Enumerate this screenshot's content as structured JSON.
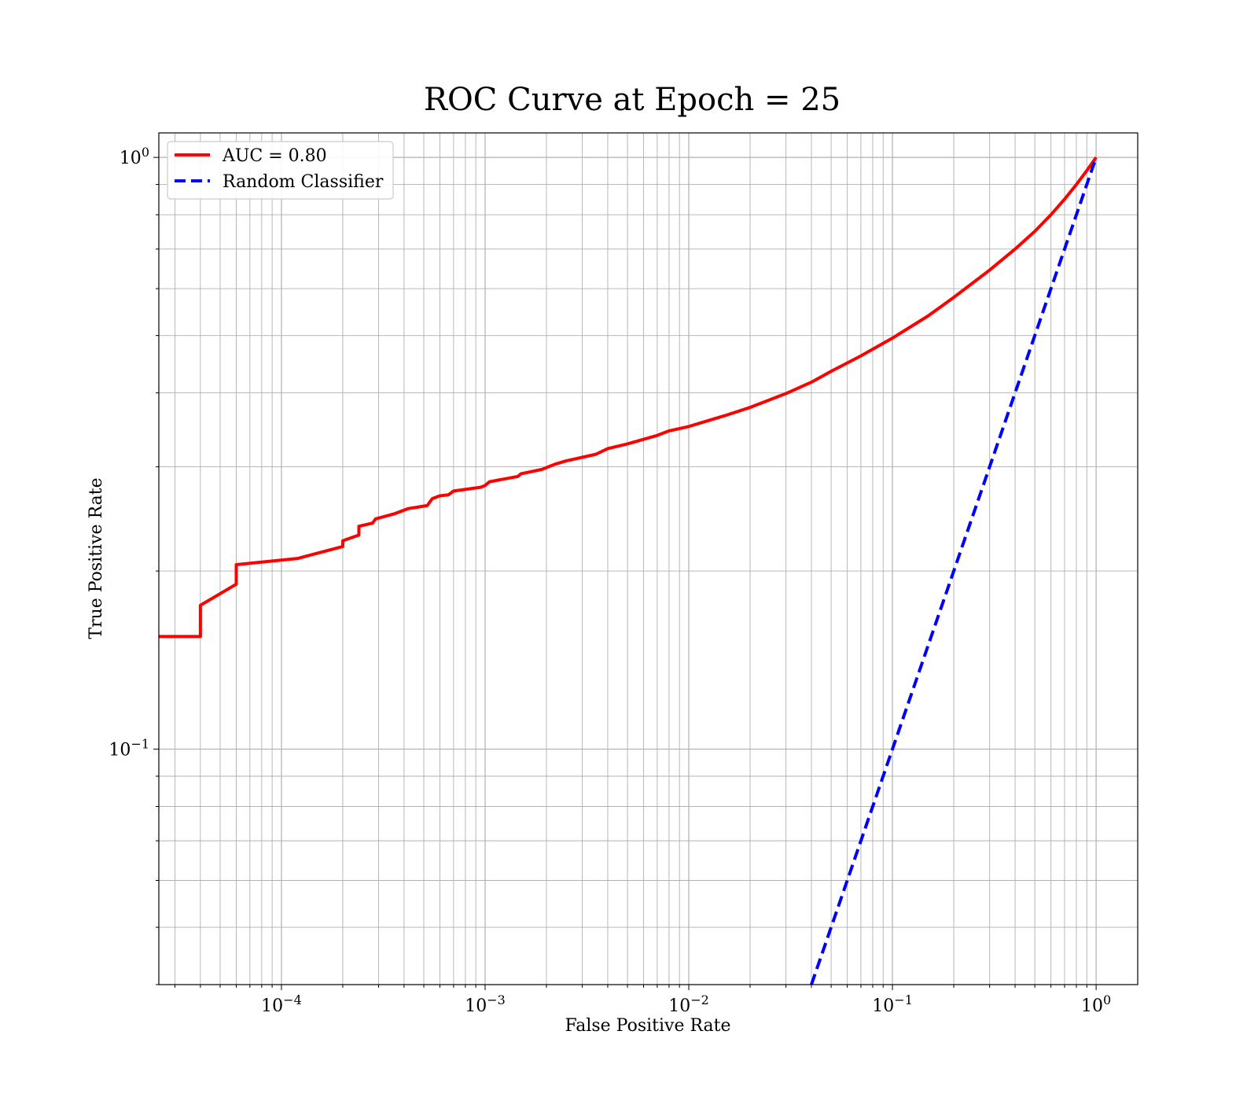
{
  "chart_data": {
    "type": "line",
    "title": "ROC Curve at Epoch = 25",
    "xlabel": "False Positive Rate",
    "ylabel": "True Positive Rate",
    "xscale": "log",
    "yscale": "log",
    "xlim": [
      2.5e-05,
      1.6
    ],
    "ylim": [
      0.04,
      1.1
    ],
    "grid": "on (major and minor)",
    "legend_position": "top-left",
    "x_ticks": [
      {
        "value": 0.0001,
        "base": "10",
        "exp": "−4"
      },
      {
        "value": 0.001,
        "base": "10",
        "exp": "−3"
      },
      {
        "value": 0.01,
        "base": "10",
        "exp": "−2"
      },
      {
        "value": 0.1,
        "base": "10",
        "exp": "−1"
      },
      {
        "value": 1,
        "base": "10",
        "exp": "0"
      }
    ],
    "y_ticks": [
      {
        "value": 0.1,
        "base": "10",
        "exp": "−1"
      },
      {
        "value": 1,
        "base": "10",
        "exp": "0"
      }
    ],
    "series": [
      {
        "name": "AUC = 0.80",
        "color": "#ff0000",
        "style": "solid",
        "points": [
          [
            2.5e-05,
            0.155
          ],
          [
            4e-05,
            0.155
          ],
          [
            4e-05,
            0.175
          ],
          [
            6e-05,
            0.19
          ],
          [
            6e-05,
            0.205
          ],
          [
            0.00012,
            0.21
          ],
          [
            0.0002,
            0.22
          ],
          [
            0.0002,
            0.225
          ],
          [
            0.00024,
            0.23
          ],
          [
            0.00024,
            0.238
          ],
          [
            0.00028,
            0.241
          ],
          [
            0.00029,
            0.245
          ],
          [
            0.00036,
            0.25
          ],
          [
            0.00042,
            0.255
          ],
          [
            0.00052,
            0.258
          ],
          [
            0.00055,
            0.265
          ],
          [
            0.0006,
            0.268
          ],
          [
            0.00066,
            0.269
          ],
          [
            0.0007,
            0.273
          ],
          [
            0.00095,
            0.277
          ],
          [
            0.001,
            0.279
          ],
          [
            0.00105,
            0.283
          ],
          [
            0.00145,
            0.289
          ],
          [
            0.0015,
            0.292
          ],
          [
            0.0019,
            0.297
          ],
          [
            0.0022,
            0.303
          ],
          [
            0.0025,
            0.307
          ],
          [
            0.0035,
            0.315
          ],
          [
            0.004,
            0.322
          ],
          [
            0.005,
            0.328
          ],
          [
            0.007,
            0.339
          ],
          [
            0.008,
            0.345
          ],
          [
            0.01,
            0.351
          ],
          [
            0.015,
            0.366
          ],
          [
            0.02,
            0.378
          ],
          [
            0.03,
            0.399
          ],
          [
            0.04,
            0.417
          ],
          [
            0.05,
            0.435
          ],
          [
            0.07,
            0.462
          ],
          [
            0.1,
            0.495
          ],
          [
            0.15,
            0.54
          ],
          [
            0.2,
            0.58
          ],
          [
            0.3,
            0.645
          ],
          [
            0.4,
            0.7
          ],
          [
            0.5,
            0.75
          ],
          [
            0.6,
            0.8
          ],
          [
            0.7,
            0.85
          ],
          [
            0.8,
            0.9
          ],
          [
            0.9,
            0.95
          ],
          [
            1.0,
            1.0
          ]
        ]
      },
      {
        "name": "Random Classifier",
        "color": "#0000ff",
        "style": "dashed",
        "points": [
          [
            0.04,
            0.04
          ],
          [
            1.0,
            1.0
          ]
        ]
      }
    ]
  }
}
